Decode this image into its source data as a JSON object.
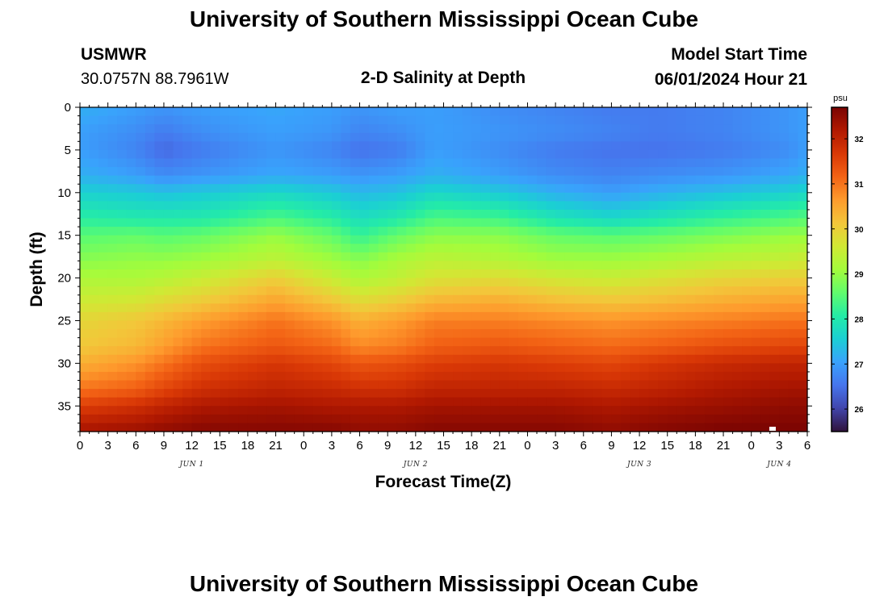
{
  "header": {
    "title": "University of Southern Mississippi Ocean Cube",
    "station": "USMWR",
    "coords": "30.0757N  88.7961W",
    "subtitle": "2-D Salinity at Depth",
    "model_start_label": "Model Start Time",
    "model_start_value": "06/01/2024 Hour 21"
  },
  "footer": {
    "title": "University of Southern Mississippi Ocean Cube"
  },
  "chart_data": {
    "type": "heatmap",
    "title": "2-D Salinity at Depth",
    "xlabel": "Forecast Time(Z)",
    "ylabel": "Depth (ft)",
    "ylim": [
      0,
      38
    ],
    "y_inverted": true,
    "x_hours_range": [
      0,
      78
    ],
    "x_tick_hours": [
      0,
      3,
      6,
      9,
      12,
      15,
      18,
      21,
      24,
      27,
      30,
      33,
      36,
      39,
      42,
      45,
      48,
      51,
      54,
      57,
      60,
      63,
      66,
      69,
      72,
      75,
      78
    ],
    "x_tick_labels": [
      "0",
      "3",
      "6",
      "9",
      "12",
      "15",
      "18",
      "21",
      "0",
      "3",
      "6",
      "9",
      "12",
      "15",
      "18",
      "21",
      "0",
      "3",
      "6",
      "9",
      "12",
      "15",
      "18",
      "21",
      "0",
      "3",
      "6"
    ],
    "day_labels": [
      {
        "text": "JUN 1",
        "hour": 12
      },
      {
        "text": "JUN 2",
        "hour": 36
      },
      {
        "text": "JUN 3",
        "hour": 60
      },
      {
        "text": "JUN 4",
        "hour": 75
      }
    ],
    "y_tick_values": [
      0,
      5,
      10,
      15,
      20,
      25,
      30,
      35
    ],
    "colorbar": {
      "unit": "psu",
      "range": [
        25.5,
        32.7
      ],
      "ticks": [
        26,
        27,
        28,
        29,
        30,
        31,
        32
      ],
      "colormap": [
        "#30123b",
        "#4145ab",
        "#4675ed",
        "#39a2fc",
        "#1bcfd4",
        "#24eca6",
        "#61fc6c",
        "#a4fc3b",
        "#d1e834",
        "#f3c63a",
        "#fe9b2d",
        "#f36315",
        "#d93806",
        "#b11901",
        "#7a0402"
      ]
    },
    "columns_hours": [
      0,
      6,
      9,
      13,
      21,
      27,
      30,
      34,
      38,
      45,
      51,
      57,
      62,
      69,
      76,
      78
    ],
    "depth_rows_ft": [
      0,
      3,
      5,
      8,
      10,
      13,
      15,
      18,
      20,
      23,
      25,
      28,
      30,
      33,
      35,
      38
    ],
    "salinity_psu": [
      [
        27.2,
        27.0,
        26.9,
        27.0,
        27.1,
        27.0,
        26.9,
        27.0,
        27.0,
        26.8,
        26.7,
        26.6,
        26.6,
        26.7,
        26.9,
        27.0
      ],
      [
        27.0,
        26.8,
        26.6,
        26.8,
        27.0,
        26.9,
        26.7,
        26.8,
        27.0,
        26.9,
        26.8,
        26.7,
        26.6,
        26.7,
        26.9,
        27.0
      ],
      [
        27.0,
        26.7,
        26.4,
        26.6,
        26.9,
        26.7,
        26.5,
        26.6,
        27.0,
        26.8,
        26.6,
        26.5,
        26.5,
        26.6,
        26.8,
        27.0
      ],
      [
        27.2,
        27.0,
        26.8,
        26.9,
        27.1,
        27.0,
        26.9,
        27.0,
        27.2,
        27.0,
        26.8,
        26.7,
        26.8,
        26.9,
        27.1,
        27.2
      ],
      [
        27.6,
        27.5,
        27.4,
        27.5,
        27.7,
        27.5,
        27.3,
        27.4,
        27.7,
        27.5,
        27.2,
        27.0,
        27.2,
        27.4,
        27.6,
        27.7
      ],
      [
        28.1,
        28.0,
        28.0,
        28.0,
        28.4,
        28.1,
        27.8,
        28.0,
        28.4,
        28.3,
        27.9,
        27.7,
        27.9,
        28.2,
        28.4,
        28.5
      ],
      [
        28.5,
        28.6,
        28.5,
        28.6,
        29.0,
        28.6,
        28.2,
        28.6,
        28.9,
        28.9,
        28.6,
        28.5,
        28.6,
        28.8,
        29.0,
        29.0
      ],
      [
        28.9,
        29.0,
        29.0,
        29.1,
        29.4,
        29.1,
        28.9,
        29.2,
        29.4,
        29.3,
        29.1,
        29.1,
        29.2,
        29.4,
        29.5,
        29.6
      ],
      [
        29.2,
        29.2,
        29.3,
        29.5,
        30.0,
        29.5,
        29.2,
        29.4,
        29.7,
        29.8,
        29.6,
        29.5,
        29.7,
        29.9,
        30.0,
        30.0
      ],
      [
        29.6,
        29.7,
        29.9,
        30.1,
        30.6,
        30.2,
        29.9,
        30.1,
        30.4,
        30.5,
        30.3,
        30.2,
        30.3,
        30.5,
        30.6,
        30.6
      ],
      [
        29.9,
        30.1,
        30.3,
        30.6,
        31.0,
        30.7,
        30.4,
        30.6,
        30.9,
        30.9,
        30.8,
        30.7,
        30.8,
        30.9,
        31.0,
        31.0
      ],
      [
        30.1,
        30.3,
        30.6,
        31.0,
        31.3,
        31.1,
        30.8,
        30.9,
        31.2,
        31.3,
        31.2,
        31.1,
        31.2,
        31.4,
        31.5,
        31.5
      ],
      [
        30.4,
        30.7,
        31.0,
        31.4,
        31.7,
        31.5,
        31.3,
        31.4,
        31.6,
        31.7,
        31.6,
        31.5,
        31.7,
        31.9,
        32.0,
        32.0
      ],
      [
        31.0,
        31.2,
        31.5,
        31.8,
        32.0,
        31.9,
        31.8,
        31.8,
        32.0,
        32.0,
        32.0,
        31.9,
        32.0,
        32.2,
        32.3,
        32.3
      ],
      [
        31.6,
        31.8,
        32.0,
        32.2,
        32.3,
        32.2,
        32.2,
        32.2,
        32.3,
        32.3,
        32.3,
        32.2,
        32.3,
        32.4,
        32.5,
        32.5
      ],
      [
        32.3,
        32.4,
        32.5,
        32.6,
        32.6,
        32.6,
        32.5,
        32.5,
        32.6,
        32.6,
        32.6,
        32.5,
        32.6,
        32.7,
        32.7,
        32.7
      ]
    ]
  }
}
